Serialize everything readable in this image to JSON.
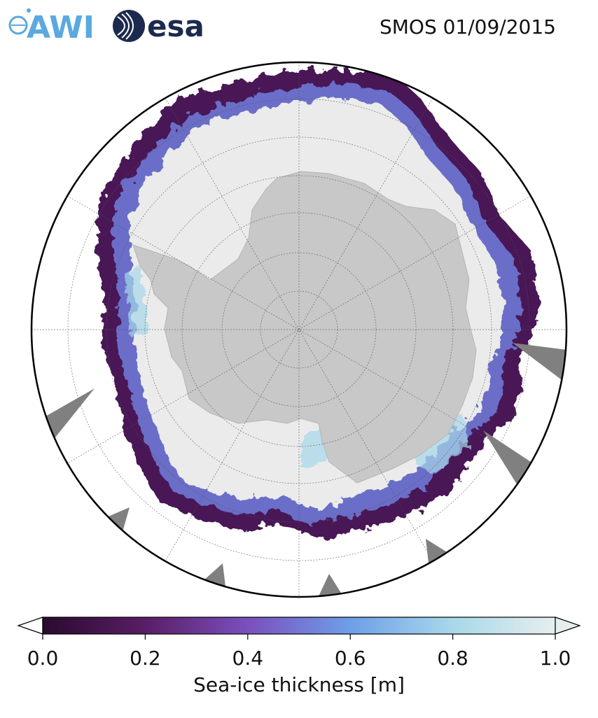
{
  "header": {
    "title": "SMOS 01/09/2015",
    "logos": [
      {
        "name": "awi-logo",
        "text": "AWI",
        "color": "#5aa9e0"
      },
      {
        "name": "esa-logo",
        "text": "esa",
        "color": "#1d2a4f"
      }
    ]
  },
  "map": {
    "projection": "south-polar-stereographic",
    "land_color": "#c8c8c8",
    "open_water_color": "#ffffff",
    "thick_ice_color": "#ebebeb",
    "no_data_color": "#808080",
    "gridlines": "dashed grey",
    "thickness_field": {
      "region": "Antarctic sea-ice zone",
      "interior_value": 1.0,
      "thin_edge_band": "0.0–0.4 along ice margin",
      "mid_band": "0.4–0.8 inside margin"
    }
  },
  "colorbar": {
    "label": "Sea-ice thickness [m]",
    "min": 0.0,
    "max": 1.0,
    "ticks": [
      "0.0",
      "0.2",
      "0.4",
      "0.6",
      "0.8",
      "1.0"
    ],
    "extend": "both",
    "colormap": [
      "#2a0a2e",
      "#5a1e66",
      "#7a4fbf",
      "#6e9fe8",
      "#a8d8ea",
      "#e6eeee"
    ]
  }
}
